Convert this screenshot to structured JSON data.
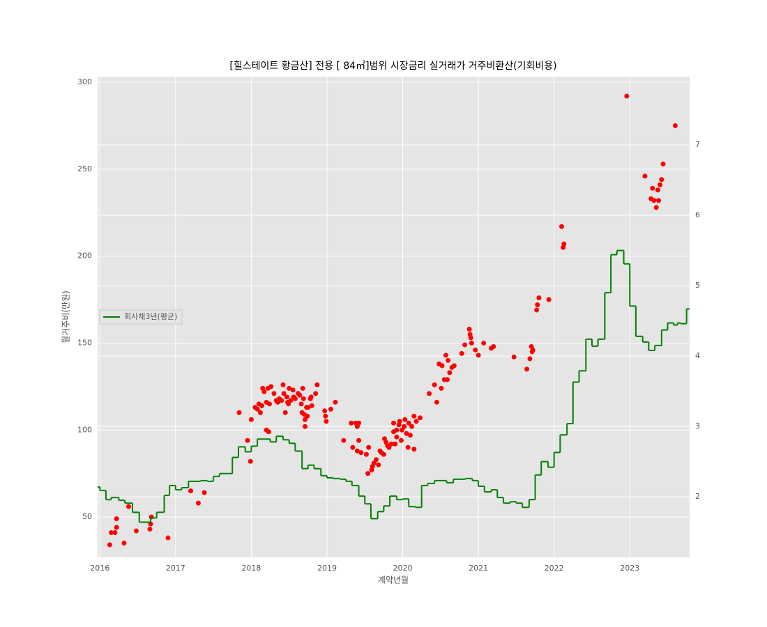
{
  "chart_data": {
    "type": "scatter",
    "title": "[힐스테이트 황금산] 전용 [ 84㎡]범위 시장금리 실거래가 거주비환산(기회비용)",
    "xlabel": "계약년월",
    "ylabel": "월거주비(만원)",
    "xlim": [
      2015.97,
      2023.79
    ],
    "xticks": [
      2016,
      2017,
      2018,
      2019,
      2020,
      2021,
      2022,
      2023
    ],
    "ylim": [
      26.8,
      303.2
    ],
    "yticks": [
      50,
      100,
      150,
      200,
      250,
      300
    ],
    "y2lim": [
      1.14,
      7.97
    ],
    "y2ticks": [
      2,
      3,
      4,
      5,
      6,
      7
    ],
    "grid": true,
    "legend": "center left",
    "series": [
      {
        "type": "scatter",
        "color": "#ff0000",
        "x": [
          2016.13,
          2016.15,
          2016.2,
          2016.22,
          2016.22,
          2016.32,
          2016.38,
          2016.48,
          2016.66,
          2016.67,
          2016.68,
          2016.9,
          2017.2,
          2017.3,
          2017.38,
          2017.84,
          2017.95,
          2017.99,
          2018.0,
          2018.05,
          2018.08,
          2018.1,
          2018.12,
          2018.14,
          2018.15,
          2018.17,
          2018.2,
          2018.2,
          2018.23,
          2018.24,
          2018.22,
          2018.26,
          2018.3,
          2018.33,
          2018.35,
          2018.37,
          2018.4,
          2018.42,
          2018.45,
          2018.43,
          2018.47,
          2018.48,
          2018.49,
          2018.5,
          2018.52,
          2018.55,
          2018.56,
          2018.58,
          2018.62,
          2018.64,
          2018.66,
          2018.68,
          2018.67,
          2018.69,
          2018.7,
          2018.71,
          2018.71,
          2018.73,
          2018.74,
          2018.75,
          2018.78,
          2018.79,
          2018.8,
          2018.85,
          2018.87,
          2018.97,
          2018.98,
          2018.99,
          2019.05,
          2019.11,
          2019.22,
          2019.32,
          2019.34,
          2019.38,
          2019.4,
          2019.4,
          2019.42,
          2019.42,
          2019.45,
          2019.52,
          2019.54,
          2019.55,
          2019.59,
          2019.6,
          2019.62,
          2019.65,
          2019.68,
          2019.7,
          2019.72,
          2019.75,
          2019.76,
          2019.78,
          2019.8,
          2019.82,
          2019.85,
          2019.88,
          2019.88,
          2019.9,
          2019.92,
          2019.92,
          2019.95,
          2019.96,
          2019.98,
          2019.99,
          2020.02,
          2020.03,
          2020.05,
          2020.07,
          2020.08,
          2020.1,
          2020.12,
          2020.15,
          2020.15,
          2020.18,
          2020.23,
          2020.35,
          2020.42,
          2020.45,
          2020.48,
          2020.51,
          2020.52,
          2020.55,
          2020.57,
          2020.59,
          2020.6,
          2020.62,
          2020.65,
          2020.68,
          2020.78,
          2020.82,
          2020.88,
          2020.89,
          2020.9,
          2020.91,
          2020.96,
          2021.0,
          2021.07,
          2021.17,
          2021.2,
          2021.47,
          2021.64,
          2021.68,
          2021.7,
          2021.71,
          2021.72,
          2021.77,
          2021.78,
          2021.8,
          2021.93,
          2022.1,
          2022.12,
          2022.13,
          2022.96,
          2023.2,
          2023.28,
          2023.3,
          2023.32,
          2023.35,
          2023.37,
          2023.38,
          2023.4,
          2023.42,
          2023.44,
          2023.6
        ],
        "values": [
          34,
          41,
          41,
          44,
          49,
          35,
          56,
          42,
          43,
          46,
          50,
          38,
          65,
          58,
          64,
          110,
          94,
          82,
          106,
          113,
          112,
          115,
          110,
          114,
          124,
          122,
          116,
          100,
          99,
          115,
          124,
          125,
          121,
          117,
          116,
          118,
          117,
          126,
          110,
          121,
          119,
          116,
          115,
          124,
          117,
          123,
          119,
          118,
          121,
          120,
          115,
          124,
          110,
          118,
          109,
          106,
          102,
          113,
          108,
          113,
          118,
          119,
          114,
          121,
          126,
          111,
          108,
          105,
          112,
          116,
          94,
          104,
          90,
          104,
          88,
          102,
          104,
          94,
          87,
          86,
          75,
          90,
          77,
          79,
          81,
          83,
          80,
          88,
          87,
          86,
          95,
          93,
          91,
          90,
          92,
          104,
          99,
          92,
          96,
          100,
          103,
          105,
          94,
          100,
          102,
          106,
          98,
          90,
          104,
          97,
          102,
          108,
          89,
          105,
          107,
          121,
          126,
          116,
          138,
          124,
          137,
          129,
          143,
          129,
          140,
          133,
          136,
          137,
          144,
          149,
          158,
          155,
          153,
          150,
          146,
          143,
          150,
          147,
          148,
          142,
          135,
          141,
          148,
          145,
          146,
          169,
          172,
          176,
          175,
          217,
          205,
          207,
          292,
          246,
          233,
          239,
          232,
          228,
          238,
          232,
          241,
          244,
          253,
          275
        ]
      },
      {
        "type": "step",
        "name": "회사채3년(평균)",
        "color": "#008000",
        "axis": "y2",
        "x": [
          2015.97,
          2016.0,
          2016.08,
          2016.15,
          2016.25,
          2016.33,
          2016.43,
          2016.52,
          2016.67,
          2016.75,
          2016.85,
          2016.92,
          2017.0,
          2017.08,
          2017.17,
          2017.33,
          2017.42,
          2017.5,
          2017.58,
          2017.75,
          2017.83,
          2017.92,
          2018.0,
          2018.08,
          2018.25,
          2018.33,
          2018.42,
          2018.5,
          2018.58,
          2018.67,
          2018.75,
          2018.83,
          2018.92,
          2019.0,
          2019.08,
          2019.17,
          2019.25,
          2019.33,
          2019.42,
          2019.5,
          2019.58,
          2019.67,
          2019.75,
          2019.83,
          2019.92,
          2020.0,
          2020.08,
          2020.17,
          2020.25,
          2020.33,
          2020.42,
          2020.58,
          2020.67,
          2020.83,
          2020.92,
          2021.0,
          2021.08,
          2021.17,
          2021.25,
          2021.33,
          2021.42,
          2021.5,
          2021.58,
          2021.67,
          2021.75,
          2021.83,
          2021.92,
          2022.0,
          2022.08,
          2022.17,
          2022.25,
          2022.33,
          2022.42,
          2022.5,
          2022.58,
          2022.67,
          2022.75,
          2022.83,
          2022.92,
          2023.0,
          2023.08,
          2023.17,
          2023.25,
          2023.33,
          2023.42,
          2023.5,
          2023.58,
          2023.63,
          2023.67,
          2023.75
        ],
        "values": [
          2.14,
          2.09,
          1.96,
          1.99,
          1.95,
          1.91,
          1.78,
          1.64,
          1.7,
          1.78,
          2.02,
          2.16,
          2.1,
          2.13,
          2.22,
          2.23,
          2.22,
          2.29,
          2.33,
          2.56,
          2.71,
          2.64,
          2.72,
          2.82,
          2.78,
          2.86,
          2.81,
          2.76,
          2.65,
          2.4,
          2.45,
          2.4,
          2.3,
          2.27,
          2.26,
          2.25,
          2.22,
          2.16,
          2.01,
          1.9,
          1.69,
          1.79,
          1.87,
          2.01,
          1.96,
          1.97,
          1.86,
          1.85,
          2.16,
          2.19,
          2.23,
          2.2,
          2.25,
          2.26,
          2.23,
          2.15,
          2.07,
          2.1,
          1.99,
          1.91,
          1.93,
          1.91,
          1.85,
          1.96,
          2.31,
          2.5,
          2.42,
          2.63,
          2.88,
          3.04,
          3.63,
          3.79,
          4.24,
          4.14,
          4.24,
          4.9,
          5.44,
          5.5,
          5.31,
          4.71,
          4.28,
          4.2,
          4.08,
          4.15,
          4.37,
          4.47,
          4.44,
          4.47,
          4.46,
          4.67
        ]
      }
    ]
  }
}
